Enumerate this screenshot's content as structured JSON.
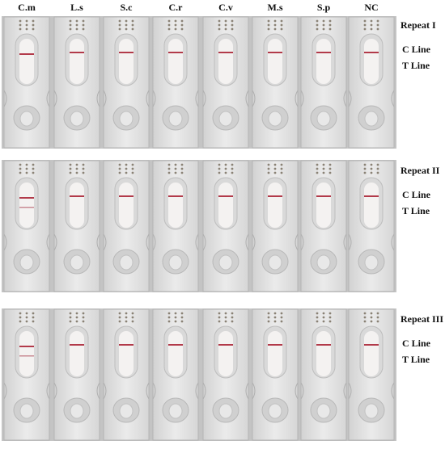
{
  "columns": [
    "C.m",
    "L.s",
    "S.c",
    "C.r",
    "C.v",
    "M.s",
    "S.p",
    "NC"
  ],
  "panels": [
    {
      "title": "Repeat I",
      "c_line": "C Line",
      "t_line": "T Line"
    },
    {
      "title": "Repeat II",
      "c_line": "C Line",
      "t_line": "T Line"
    },
    {
      "title": "Repeat III",
      "c_line": "C Line",
      "t_line": "T Line"
    }
  ]
}
